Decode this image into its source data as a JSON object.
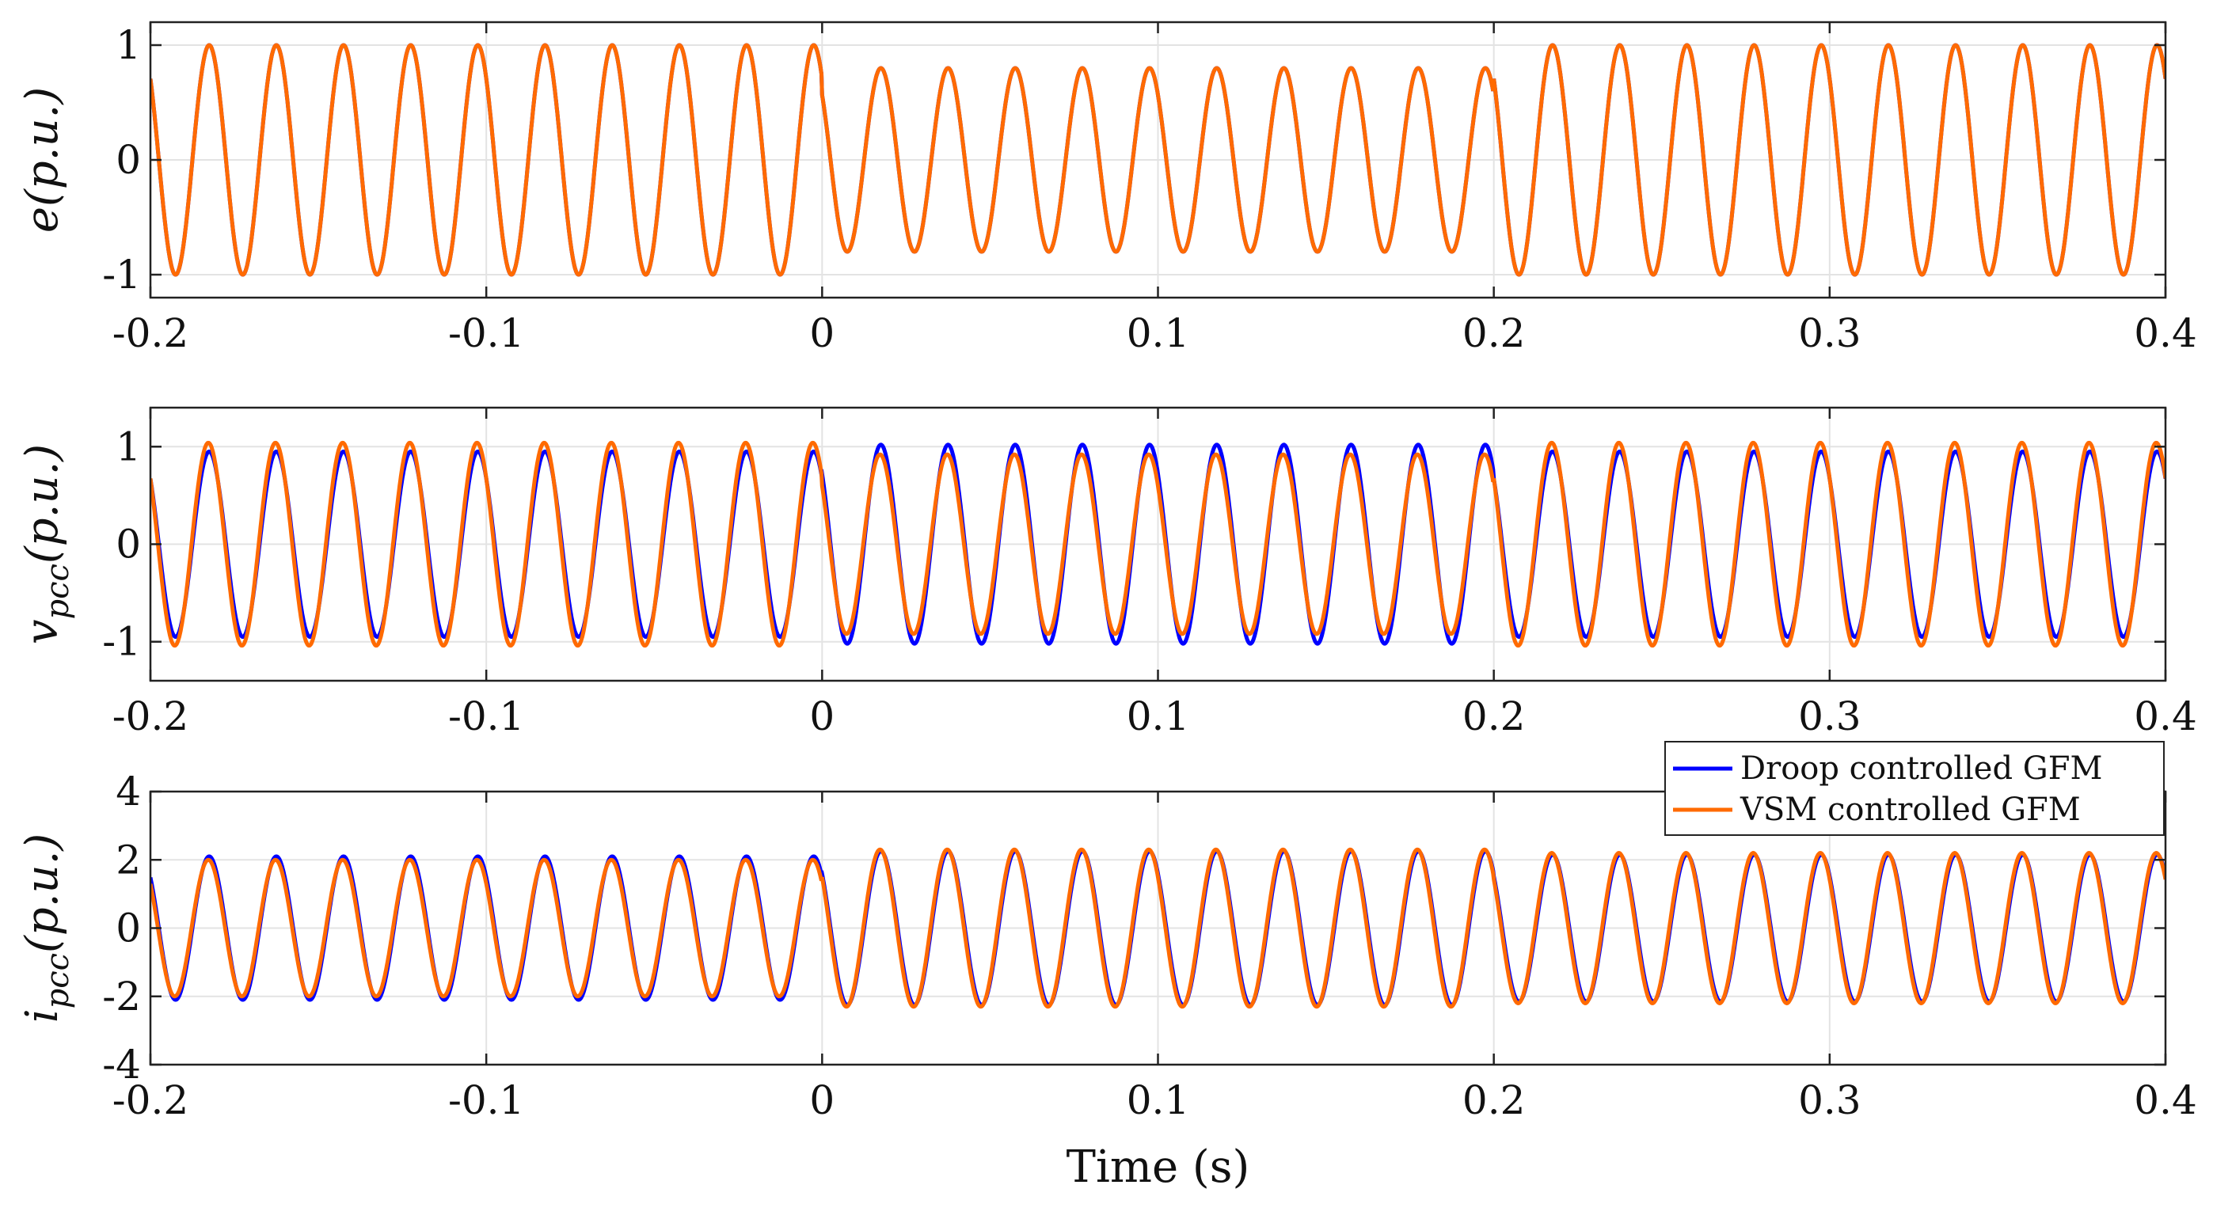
{
  "chart_data": [
    {
      "type": "line",
      "id": "e",
      "ylabel": "e(p.u.)",
      "xlabel": "",
      "xlim": [
        -0.2,
        0.4
      ],
      "ylim": [
        -1.2,
        1.2
      ],
      "xticks": [
        -0.2,
        -0.1,
        0,
        0.1,
        0.2,
        0.3,
        0.4
      ],
      "xtick_labels": [
        "-0.2",
        "-0.1",
        "0",
        "0.1",
        "0.2",
        "0.3",
        "0.4"
      ],
      "yticks": [
        -1,
        0,
        1
      ],
      "ytick_labels": [
        "-1",
        "0",
        "1"
      ],
      "grid": true,
      "frequency_hz": 50,
      "segments": [
        {
          "t_start": -0.2,
          "t_end": 0.0,
          "amplitude": 1.0
        },
        {
          "t_start": 0.0,
          "t_end": 0.2,
          "amplitude": 0.8
        },
        {
          "t_start": 0.2,
          "t_end": 0.4,
          "amplitude": 1.0
        }
      ],
      "series": [
        {
          "name": "Droop controlled GFM",
          "color": "#0000ff"
        },
        {
          "name": "VSM controlled GFM",
          "color": "#ff6a00"
        }
      ]
    },
    {
      "type": "line",
      "id": "vpcc",
      "ylabel": "v",
      "ylabel_sub": "pcc",
      "ylabel_suffix": "(p.u.)",
      "xlabel": "",
      "xlim": [
        -0.2,
        0.4
      ],
      "ylim": [
        -1.4,
        1.4
      ],
      "xticks": [
        -0.2,
        -0.1,
        0,
        0.1,
        0.2,
        0.3,
        0.4
      ],
      "xtick_labels": [
        "-0.2",
        "-0.1",
        "0",
        "0.1",
        "0.2",
        "0.3",
        "0.4"
      ],
      "yticks": [
        -1,
        0,
        1
      ],
      "ytick_labels": [
        "-1",
        "0",
        "1"
      ],
      "grid": true,
      "frequency_hz": 50,
      "series": [
        {
          "name": "Droop controlled GFM",
          "color": "#0000ff",
          "segments": [
            {
              "t_start": -0.2,
              "t_end": 0.0,
              "amplitude": 0.95
            },
            {
              "t_start": 0.0,
              "t_end": 0.2,
              "amplitude": 1.02
            },
            {
              "t_start": 0.2,
              "t_end": 0.4,
              "amplitude": 0.95
            }
          ]
        },
        {
          "name": "VSM controlled GFM",
          "color": "#ff6a00",
          "segments": [
            {
              "t_start": -0.2,
              "t_end": 0.0,
              "amplitude": 1.04
            },
            {
              "t_start": 0.0,
              "t_end": 0.2,
              "amplitude": 0.92
            },
            {
              "t_start": 0.2,
              "t_end": 0.4,
              "amplitude": 1.04
            }
          ]
        }
      ]
    },
    {
      "type": "line",
      "id": "ipcc",
      "ylabel": "i",
      "ylabel_sub": "pcc",
      "ylabel_suffix": "(p.u.)",
      "xlabel": "Time (s)",
      "xlim": [
        -0.2,
        0.4
      ],
      "ylim": [
        -4,
        4
      ],
      "xticks": [
        -0.2,
        -0.1,
        0,
        0.1,
        0.2,
        0.3,
        0.4
      ],
      "xtick_labels": [
        "-0.2",
        "-0.1",
        "0",
        "0.1",
        "0.2",
        "0.3",
        "0.4"
      ],
      "yticks": [
        -4,
        -2,
        0,
        2,
        4
      ],
      "ytick_labels": [
        "-4",
        "-2",
        "0",
        "2",
        "4"
      ],
      "grid": true,
      "frequency_hz": 50,
      "legend_location": "top-right",
      "series": [
        {
          "name": "Droop controlled GFM",
          "color": "#0000ff",
          "segments": [
            {
              "t_start": -0.2,
              "t_end": 0.0,
              "amplitude": 2.1
            },
            {
              "t_start": 0.0,
              "t_end": 0.2,
              "amplitude": 2.25
            },
            {
              "t_start": 0.2,
              "t_end": 0.4,
              "amplitude": 2.15
            }
          ]
        },
        {
          "name": "VSM controlled GFM",
          "color": "#ff6a00",
          "segments": [
            {
              "t_start": -0.2,
              "t_end": 0.0,
              "amplitude": 2.0
            },
            {
              "t_start": 0.0,
              "t_end": 0.2,
              "amplitude": 2.3
            },
            {
              "t_start": 0.2,
              "t_end": 0.4,
              "amplitude": 2.2
            }
          ]
        }
      ]
    }
  ],
  "legend": {
    "entries": [
      {
        "label": "Droop controlled GFM",
        "color": "#0000ff"
      },
      {
        "label": "VSM controlled GFM",
        "color": "#ff6a00"
      }
    ]
  }
}
